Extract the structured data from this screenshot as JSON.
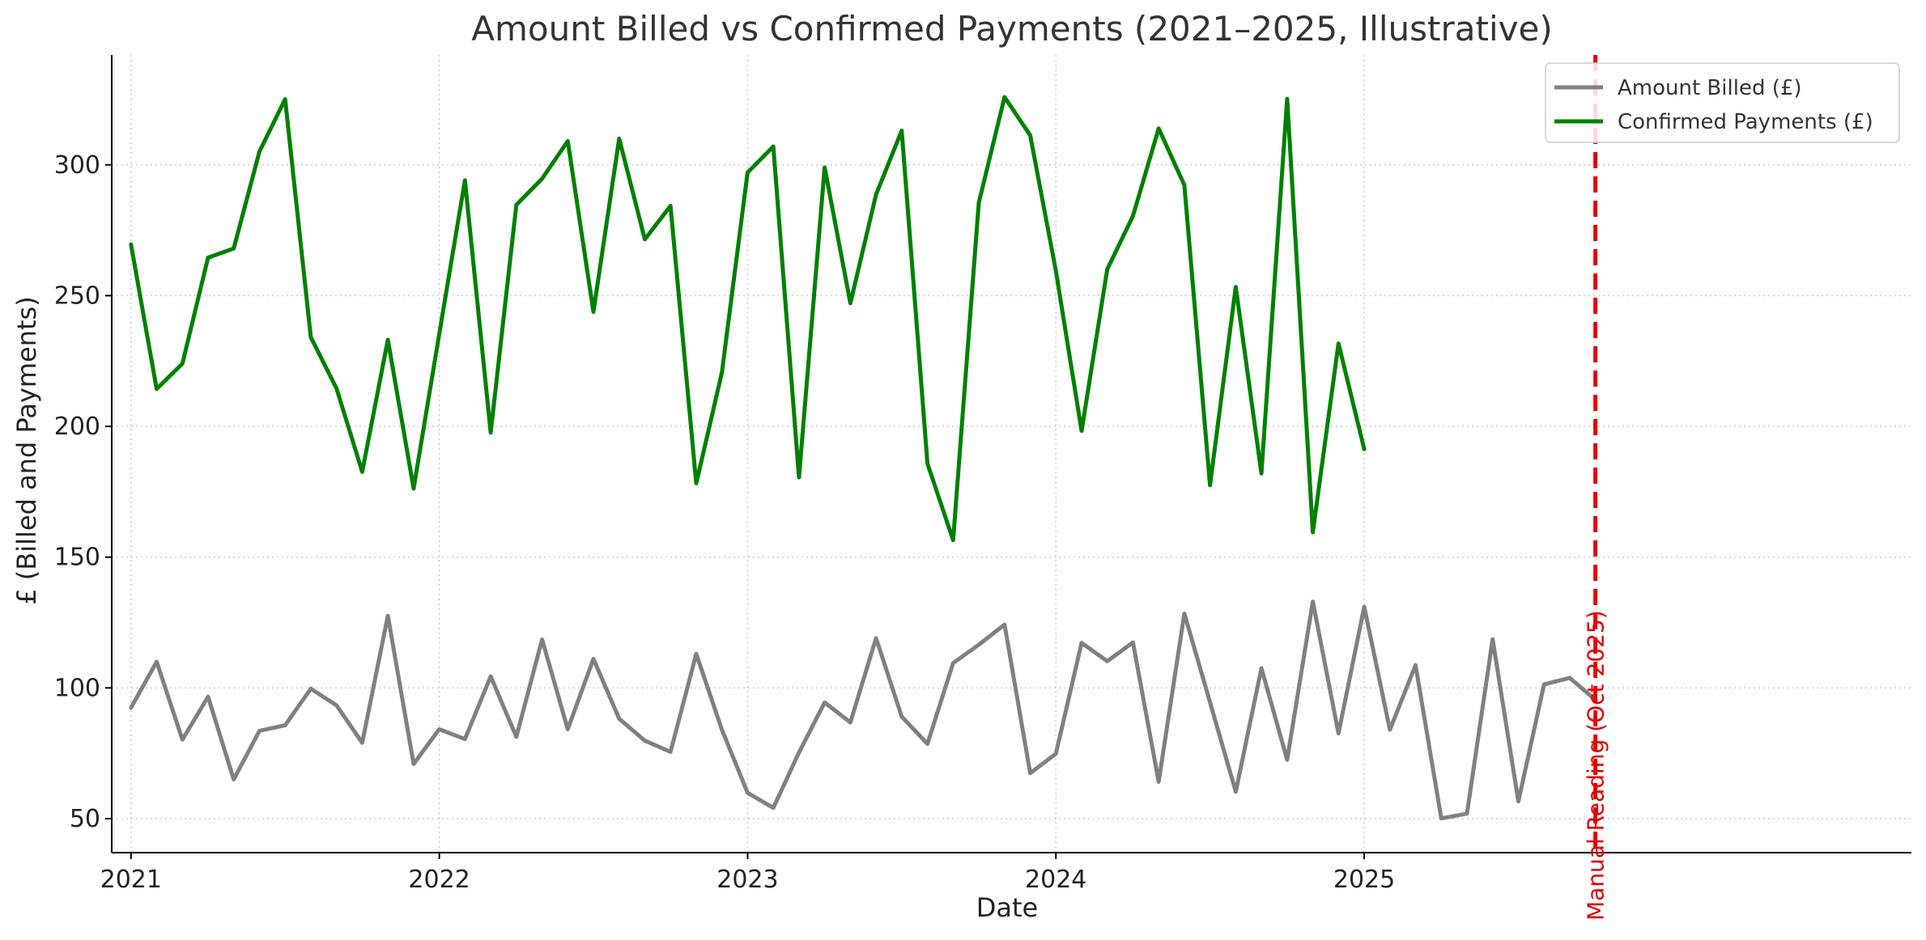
{
  "chart_data": {
    "type": "line",
    "title": "Amount Billed vs Confirmed Payments (2021–2025, Illustrative)",
    "xlabel": "Date",
    "ylabel": "£ (Billed and Payments)",
    "x_ticks": [
      "2021",
      "2022",
      "2023",
      "2024",
      "2025"
    ],
    "y_ticks": [
      50,
      100,
      150,
      200,
      250,
      300
    ],
    "ylim": [
      37,
      342
    ],
    "x_range_months": [
      -0.75,
      69.3
    ],
    "grid": true,
    "legend_position": "top-right",
    "series": [
      {
        "name": "Amount Billed (£)",
        "color": "#808080",
        "start": "2021-01",
        "values": [
          92.4,
          110.0,
          80.2,
          96.6,
          65.0,
          83.6,
          85.7,
          99.7,
          93.3,
          79.0,
          127.6,
          70.9,
          84.2,
          80.4,
          104.4,
          81.3,
          118.5,
          84.2,
          111.1,
          88.2,
          79.8,
          75.5,
          113.0,
          84.0,
          59.9,
          54.1,
          75.3,
          94.4,
          86.8,
          119.0,
          89.0,
          78.6,
          109.5,
          116.5,
          124.2,
          67.4,
          74.8,
          117.2,
          110.2,
          117.4,
          64.1,
          128.4,
          94.5,
          60.3,
          107.5,
          72.5,
          133.0,
          82.6,
          131.0,
          84.0,
          108.7,
          50.1,
          51.9,
          118.6,
          56.6,
          101.3,
          103.8,
          95.4
        ]
      },
      {
        "name": "Confirmed Payments (£)",
        "color": "#008000",
        "start": "2021-01",
        "values": [
          269.6,
          214.3,
          224.0,
          264.5,
          268.0,
          305.1,
          325.1,
          234.1,
          214.5,
          182.6,
          233.1,
          176.2,
          235.4,
          294.1,
          197.6,
          284.7,
          294.7,
          309.1,
          243.8,
          310.0,
          271.5,
          284.3,
          178.2,
          220.6,
          297.1,
          307.0,
          180.5,
          299.0,
          247.1,
          288.6,
          313.1,
          185.8,
          156.5,
          285.5,
          325.9,
          311.3,
          259.5,
          198.3,
          260.1,
          280.4,
          313.9,
          292.3,
          177.5,
          253.3,
          182.0,
          325.2,
          159.5,
          231.7,
          191.3
        ]
      }
    ],
    "annotations": [
      {
        "type": "vline",
        "x": "2025-10",
        "color": "#e00000",
        "label": "Manual Reading (Oct 2025)"
      }
    ]
  }
}
